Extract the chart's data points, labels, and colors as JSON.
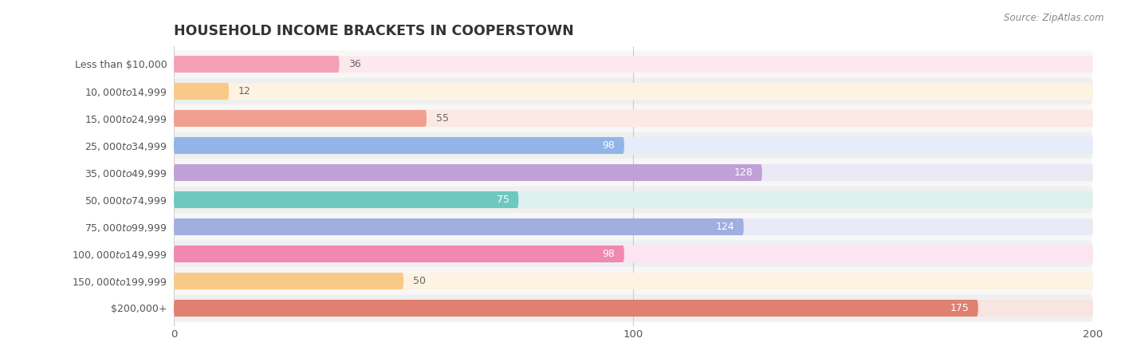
{
  "title": "HOUSEHOLD INCOME BRACKETS IN COOPERSTOWN",
  "source": "Source: ZipAtlas.com",
  "categories": [
    "Less than $10,000",
    "$10,000 to $14,999",
    "$15,000 to $24,999",
    "$25,000 to $34,999",
    "$35,000 to $49,999",
    "$50,000 to $74,999",
    "$75,000 to $99,999",
    "$100,000 to $149,999",
    "$150,000 to $199,999",
    "$200,000+"
  ],
  "values": [
    36,
    12,
    55,
    98,
    128,
    75,
    124,
    98,
    50,
    175
  ],
  "bar_colors": [
    "#f5a0b5",
    "#f9c98a",
    "#f0a090",
    "#92b4e8",
    "#c0a0d8",
    "#6ec8c0",
    "#a0aee0",
    "#f088b0",
    "#f9c98a",
    "#e08070"
  ],
  "bar_bg_colors": [
    "#fce8ed",
    "#fef3e2",
    "#fce8e4",
    "#e4edf8",
    "#ede8f5",
    "#ddf0ee",
    "#e8eaf8",
    "#fce4f0",
    "#fef3e2",
    "#f8e4e0"
  ],
  "xlim": [
    0,
    200
  ],
  "xticks": [
    0,
    100,
    200
  ],
  "inside_label_color": "#ffffff",
  "outside_label_color": "#666666",
  "title_color": "#333333",
  "source_color": "#888888"
}
